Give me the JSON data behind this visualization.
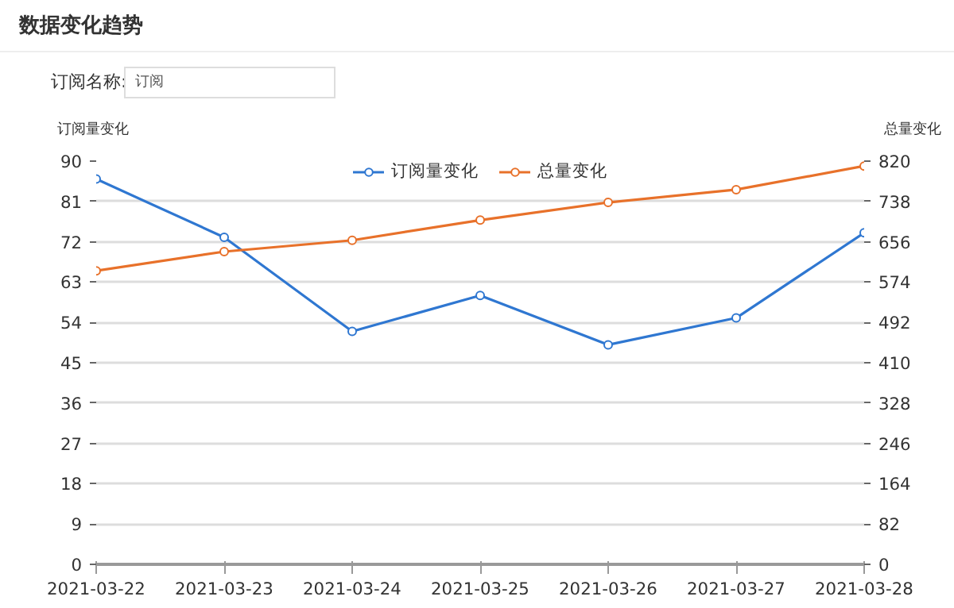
{
  "chart_data": {
    "type": "line",
    "title": "数据变化趋势",
    "annotations": [
      "订阅名称:",
      "订阅"
    ],
    "categories": [
      "2021-03-22",
      "2021-03-23",
      "2021-03-24",
      "2021-03-25",
      "2021-03-26",
      "2021-03-27",
      "2021-03-28"
    ],
    "series": [
      {
        "name": "订阅量变化",
        "color": "#2f77d1",
        "values": [
          86,
          73,
          52,
          60,
          49,
          55,
          74
        ]
      },
      {
        "name": "总量变化",
        "color": "#e8712a",
        "axis": "y2",
        "values": [
          597,
          636,
          659,
          700,
          736,
          762,
          810
        ]
      }
    ],
    "ylabel": "订阅量变化",
    "y2label": "总量变化",
    "ylim": [
      0,
      90
    ],
    "yticks": [
      0,
      9,
      18,
      27,
      36,
      45,
      54,
      63,
      72,
      81,
      90
    ],
    "y2lim": [
      0,
      820
    ],
    "y2ticks": [
      0,
      82,
      164,
      246,
      328,
      410,
      492,
      574,
      656,
      738,
      820
    ],
    "grid": "y",
    "legend": "top",
    "marker": "circle",
    "line_style": "solid"
  }
}
